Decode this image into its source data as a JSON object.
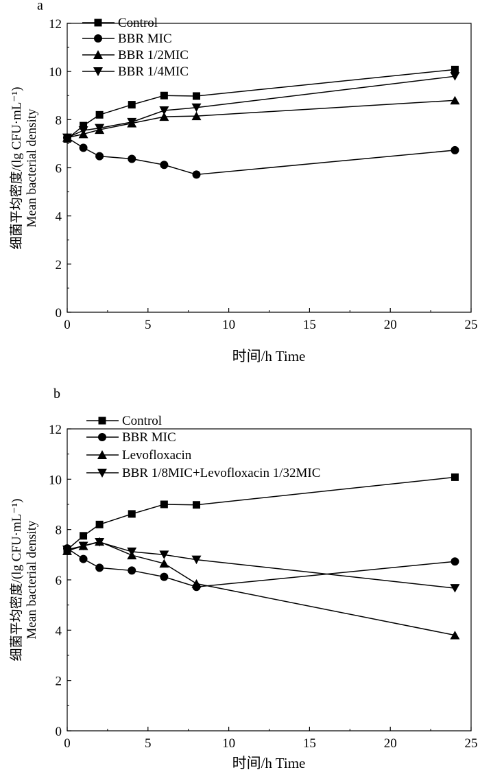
{
  "chart_data": [
    {
      "panel_label": "a",
      "type": "line",
      "xlabel": "时间/h Time",
      "ylabel_line1": "细菌平均密度/(lg CFU·mL⁻¹)",
      "ylabel_line2": "Mean bacterial density",
      "xlim": [
        0,
        25
      ],
      "ylim": [
        0,
        12
      ],
      "xticks": [
        "0",
        "5",
        "10",
        "15",
        "20",
        "25"
      ],
      "yticks": [
        "0",
        "2",
        "4",
        "6",
        "8",
        "10",
        "12"
      ],
      "legend_position": "top-left",
      "grid": false,
      "series": [
        {
          "name": "Control",
          "marker": "square",
          "x": [
            0,
            1,
            2,
            4,
            6,
            8,
            24
          ],
          "y": [
            7.2,
            7.75,
            8.2,
            8.62,
            9.0,
            8.98,
            10.08
          ]
        },
        {
          "name": "BBR MIC",
          "marker": "circle",
          "x": [
            0,
            1,
            2,
            4,
            6,
            8,
            24
          ],
          "y": [
            7.25,
            6.83,
            6.48,
            6.37,
            6.12,
            5.72,
            6.73
          ]
        },
        {
          "name": "BBR 1/2MIC",
          "marker": "triangle-up",
          "x": [
            0,
            1,
            2,
            4,
            6,
            8,
            24
          ],
          "y": [
            7.25,
            7.4,
            7.58,
            7.85,
            8.12,
            8.15,
            8.8
          ]
        },
        {
          "name": "BBR 1/4MIC",
          "marker": "triangle-down",
          "x": [
            0,
            1,
            2,
            4,
            6,
            8,
            24
          ],
          "y": [
            7.25,
            7.55,
            7.65,
            7.9,
            8.38,
            8.5,
            9.8
          ]
        }
      ]
    },
    {
      "panel_label": "b",
      "type": "line",
      "xlabel": "时间/h Time",
      "ylabel_line1": "细菌平均密度/(lg CFU·mL⁻¹)",
      "ylabel_line2": "Mean bacterial density",
      "xlim": [
        0,
        25
      ],
      "ylim": [
        0,
        12
      ],
      "xticks": [
        "0",
        "5",
        "10",
        "15",
        "20",
        "25"
      ],
      "yticks": [
        "0",
        "2",
        "4",
        "6",
        "8",
        "10",
        "12"
      ],
      "legend_position": "top-left",
      "grid": false,
      "series": [
        {
          "name": "Control",
          "marker": "square",
          "x": [
            0,
            1,
            2,
            4,
            6,
            8,
            24
          ],
          "y": [
            7.2,
            7.75,
            8.2,
            8.62,
            9.0,
            8.98,
            10.08
          ]
        },
        {
          "name": "BBR MIC",
          "marker": "circle",
          "x": [
            0,
            1,
            2,
            4,
            6,
            8,
            24
          ],
          "y": [
            7.25,
            6.83,
            6.48,
            6.37,
            6.12,
            5.72,
            6.73
          ]
        },
        {
          "name": "Levofloxacin",
          "marker": "triangle-up",
          "x": [
            0,
            1,
            2,
            4,
            6,
            8,
            24
          ],
          "y": [
            7.15,
            7.35,
            7.52,
            6.98,
            6.65,
            5.85,
            3.8
          ]
        },
        {
          "name": "BBR 1/8MIC+Levofloxacin 1/32MIC",
          "marker": "triangle-down",
          "x": [
            0,
            1,
            2,
            4,
            6,
            8,
            24
          ],
          "y": [
            7.2,
            7.35,
            7.5,
            7.12,
            7.0,
            6.8,
            5.67
          ]
        }
      ]
    }
  ]
}
